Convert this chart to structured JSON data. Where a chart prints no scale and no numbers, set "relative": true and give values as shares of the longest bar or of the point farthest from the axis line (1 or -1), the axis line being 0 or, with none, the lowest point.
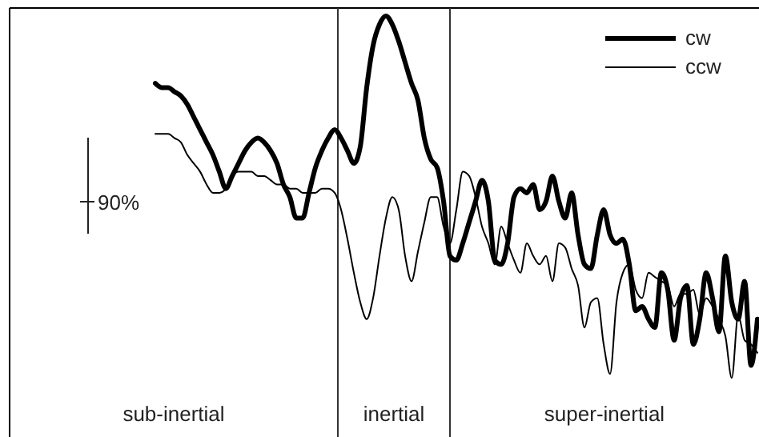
{
  "chart_data": {
    "type": "line",
    "relative": true,
    "categories": [
      null,
      null,
      null,
      null,
      null,
      null,
      null,
      null,
      null,
      null,
      null,
      null,
      null,
      null,
      null,
      null,
      null,
      null,
      null,
      null,
      null,
      null,
      null,
      null,
      null,
      null,
      null,
      null,
      null,
      null,
      null,
      null,
      null,
      null,
      null,
      null,
      null,
      null,
      null,
      null,
      null,
      null,
      null,
      null,
      null,
      null,
      null,
      null,
      null,
      null,
      null,
      null,
      null,
      null,
      null,
      null,
      null,
      null,
      null,
      null,
      null,
      null,
      null,
      null,
      null,
      null,
      null,
      null,
      null,
      null,
      null,
      null,
      null,
      null,
      null,
      null,
      null,
      null,
      null,
      null,
      null,
      null,
      null,
      null,
      null,
      null,
      null,
      null,
      null,
      null,
      null,
      null,
      null,
      null,
      null
    ],
    "series": [
      {
        "name": "cw",
        "color": "#000000",
        "values": [
          0.84,
          0.83,
          0.83,
          0.82,
          0.81,
          0.79,
          0.76,
          0.73,
          0.7,
          0.67,
          0.63,
          0.59,
          0.62,
          0.65,
          0.68,
          0.7,
          0.71,
          0.7,
          0.68,
          0.65,
          0.6,
          0.57,
          0.52,
          0.52,
          0.58,
          0.64,
          0.68,
          0.71,
          0.73,
          0.71,
          0.68,
          0.65,
          0.69,
          0.83,
          0.93,
          0.98,
          1,
          0.98,
          0.94,
          0.89,
          0.84,
          0.8,
          0.71,
          0.66,
          0.64,
          0.56,
          0.43,
          0.42,
          0.46,
          0.51,
          0.56,
          0.61,
          0.56,
          0.42,
          0.41,
          0.46,
          0.57,
          0.59,
          0.58,
          0.6,
          0.54,
          0.56,
          0.62,
          0.56,
          0.52,
          0.58,
          0.48,
          0.41,
          0.4,
          0.48,
          0.54,
          0.48,
          0.46,
          0.47,
          0.41,
          0.3,
          0.31,
          0.28,
          0.26,
          0.39,
          0.35,
          0.23,
          0.33,
          0.36,
          0.22,
          0.28,
          0.39,
          0.33,
          0.25,
          0.43,
          0.32,
          0.28,
          0.37,
          0.17,
          0.28
        ]
      },
      {
        "name": "ccw",
        "color": "#000000",
        "values": [
          0.72,
          0.72,
          0.72,
          0.71,
          0.7,
          0.67,
          0.65,
          0.63,
          0.6,
          0.58,
          0.58,
          0.59,
          0.62,
          0.63,
          0.63,
          0.63,
          0.62,
          0.62,
          0.61,
          0.6,
          0.6,
          0.59,
          0.59,
          0.58,
          0.58,
          0.58,
          0.59,
          0.59,
          0.58,
          0.54,
          0.47,
          0.39,
          0.32,
          0.28,
          0.33,
          0.43,
          0.52,
          0.57,
          0.54,
          0.43,
          0.37,
          0.44,
          0.51,
          0.57,
          0.57,
          0.5,
          0.46,
          0.54,
          0.63,
          0.62,
          0.57,
          0.5,
          0.46,
          0.41,
          0.5,
          0.46,
          0.42,
          0.39,
          0.46,
          0.43,
          0.41,
          0.43,
          0.37,
          0.46,
          0.45,
          0.4,
          0.36,
          0.26,
          0.32,
          0.33,
          0.22,
          0.15,
          0.32,
          0.39,
          0.41,
          0.35,
          0.33,
          0.39,
          0.38,
          0.37,
          0.36,
          0.31,
          0.34,
          0.34,
          0.35,
          0.29,
          0.33,
          0.31,
          0.28,
          0.24,
          0.14,
          0.29,
          0.23,
          0.22,
          0.2
        ]
      }
    ],
    "legend": "top right",
    "annotations": [
      "sub-inertial",
      "inertial",
      "super-inertial",
      "90%"
    ]
  }
}
